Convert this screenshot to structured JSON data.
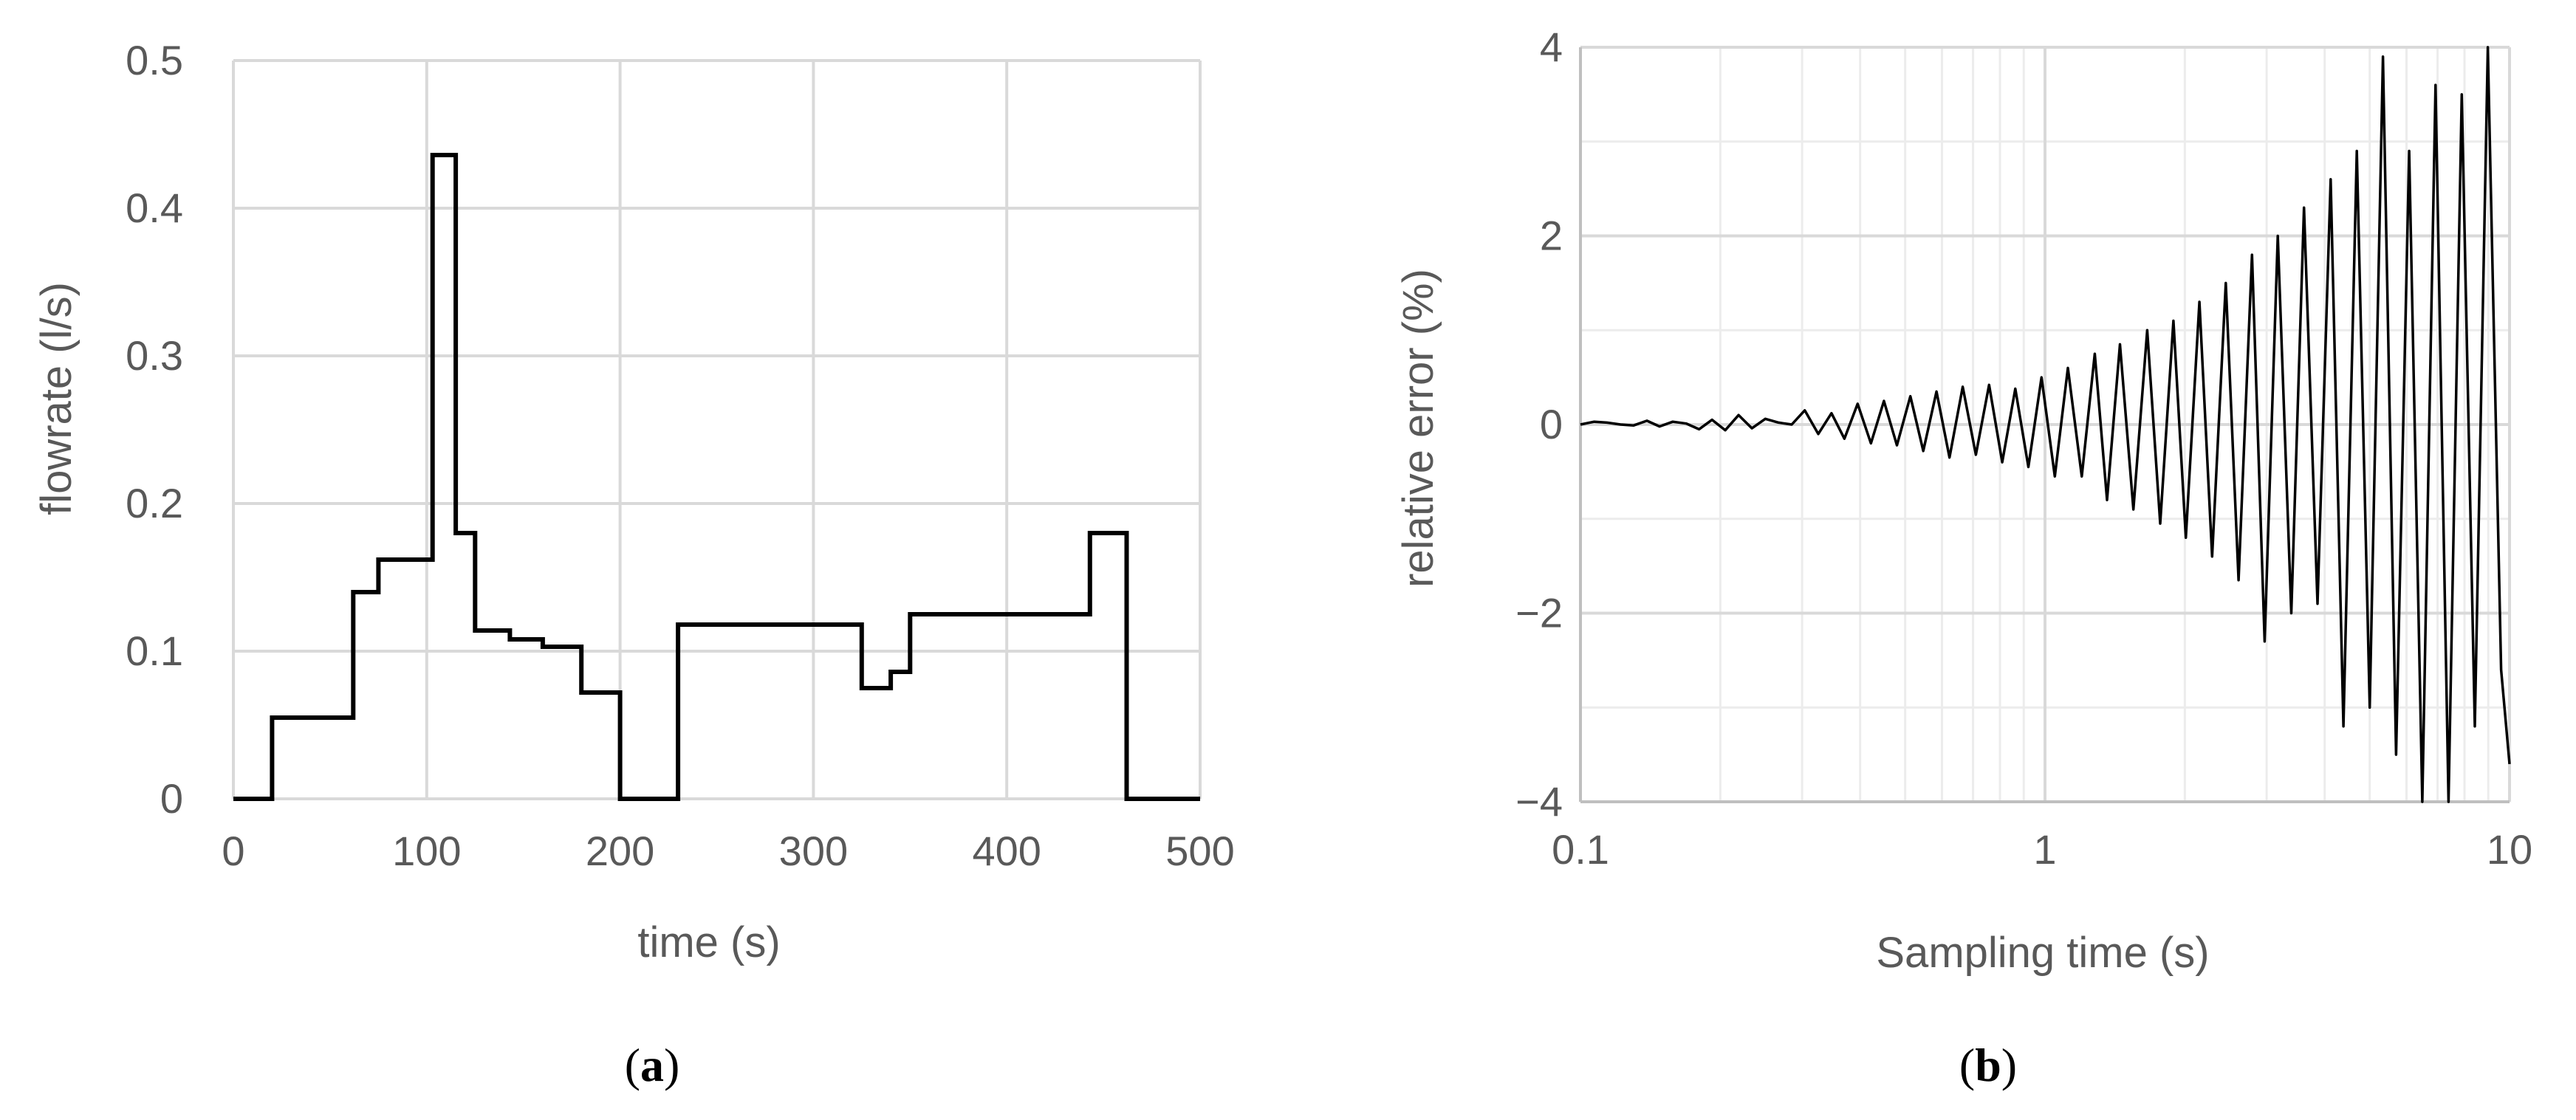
{
  "chart_data": [
    {
      "type": "line",
      "panel_label": "a",
      "xlabel": "time (s)",
      "ylabel": "flowrate (l/s)",
      "xlim": [
        0,
        500
      ],
      "ylim": [
        0,
        0.5
      ],
      "x_ticks": [
        "0",
        "100",
        "200",
        "300",
        "400",
        "500"
      ],
      "y_ticks": [
        "0",
        "0.1",
        "0.2",
        "0.3",
        "0.4",
        "0.5"
      ],
      "grid": true,
      "series": [
        {
          "line_color": "#000000",
          "step": true,
          "x": [
            0,
            20,
            20,
            62,
            62,
            75,
            75,
            103,
            103,
            115,
            115,
            125,
            125,
            143,
            143,
            160,
            160,
            180,
            180,
            200,
            200,
            230,
            230,
            325,
            325,
            340,
            340,
            350,
            350,
            443,
            443,
            462,
            462,
            500
          ],
          "y": [
            0,
            0,
            0.055,
            0.055,
            0.14,
            0.14,
            0.162,
            0.162,
            0.436,
            0.436,
            0.18,
            0.18,
            0.114,
            0.114,
            0.108,
            0.108,
            0.103,
            0.103,
            0.072,
            0.072,
            0,
            0,
            0.118,
            0.118,
            0.075,
            0.075,
            0.086,
            0.086,
            0.125,
            0.125,
            0.18,
            0.18,
            0,
            0
          ]
        }
      ]
    },
    {
      "type": "line",
      "panel_label": "b",
      "xlabel": "Sampling time  (s)",
      "ylabel": "relative error (%)",
      "x_scale": "log",
      "xlim": [
        0.1,
        10
      ],
      "ylim": [
        -4,
        4
      ],
      "x_ticks": [
        "0.1",
        "1",
        "10"
      ],
      "y_ticks": [
        "4",
        "2",
        "0",
        "−2",
        "−4"
      ],
      "grid": true,
      "series": [
        {
          "line_color": "#000000",
          "x": [
            0.1,
            0.107,
            0.114,
            0.122,
            0.13,
            0.139,
            0.148,
            0.158,
            0.169,
            0.18,
            0.192,
            0.205,
            0.219,
            0.234,
            0.25,
            0.267,
            0.285,
            0.304,
            0.325,
            0.347,
            0.37,
            0.395,
            0.422,
            0.45,
            0.48,
            0.513,
            0.547,
            0.584,
            0.623,
            0.665,
            0.71,
            0.758,
            0.809,
            0.863,
            0.921,
            0.983,
            1.05,
            1.12,
            1.2,
            1.28,
            1.36,
            1.45,
            1.55,
            1.66,
            1.77,
            1.89,
            2.01,
            2.15,
            2.29,
            2.45,
            2.61,
            2.79,
            2.97,
            3.17,
            3.39,
            3.61,
            3.86,
            4.12,
            4.39,
            4.69,
            5.0,
            5.34,
            5.7,
            6.08,
            6.49,
            6.93,
            7.39,
            7.89,
            8.42,
            8.98,
            9.59,
            10.0
          ],
          "y": [
            0.0,
            0.03,
            0.02,
            0.0,
            -0.01,
            0.04,
            -0.02,
            0.03,
            0.01,
            -0.05,
            0.05,
            -0.06,
            0.1,
            -0.04,
            0.06,
            0.02,
            0.0,
            0.15,
            -0.1,
            0.12,
            -0.15,
            0.22,
            -0.2,
            0.25,
            -0.22,
            0.3,
            -0.28,
            0.35,
            -0.35,
            0.4,
            -0.32,
            0.42,
            -0.4,
            0.38,
            -0.45,
            0.5,
            -0.55,
            0.6,
            -0.55,
            0.75,
            -0.8,
            0.85,
            -0.9,
            1.0,
            -1.05,
            1.1,
            -1.2,
            1.3,
            -1.4,
            1.5,
            -1.65,
            1.8,
            -2.3,
            2.0,
            -2.0,
            2.3,
            -1.9,
            2.6,
            -3.2,
            2.9,
            -3.0,
            3.9,
            -3.5,
            2.9,
            -4.0,
            3.6,
            -4.0,
            3.5,
            -3.2,
            4.0,
            -2.6,
            -3.6
          ]
        }
      ]
    }
  ]
}
